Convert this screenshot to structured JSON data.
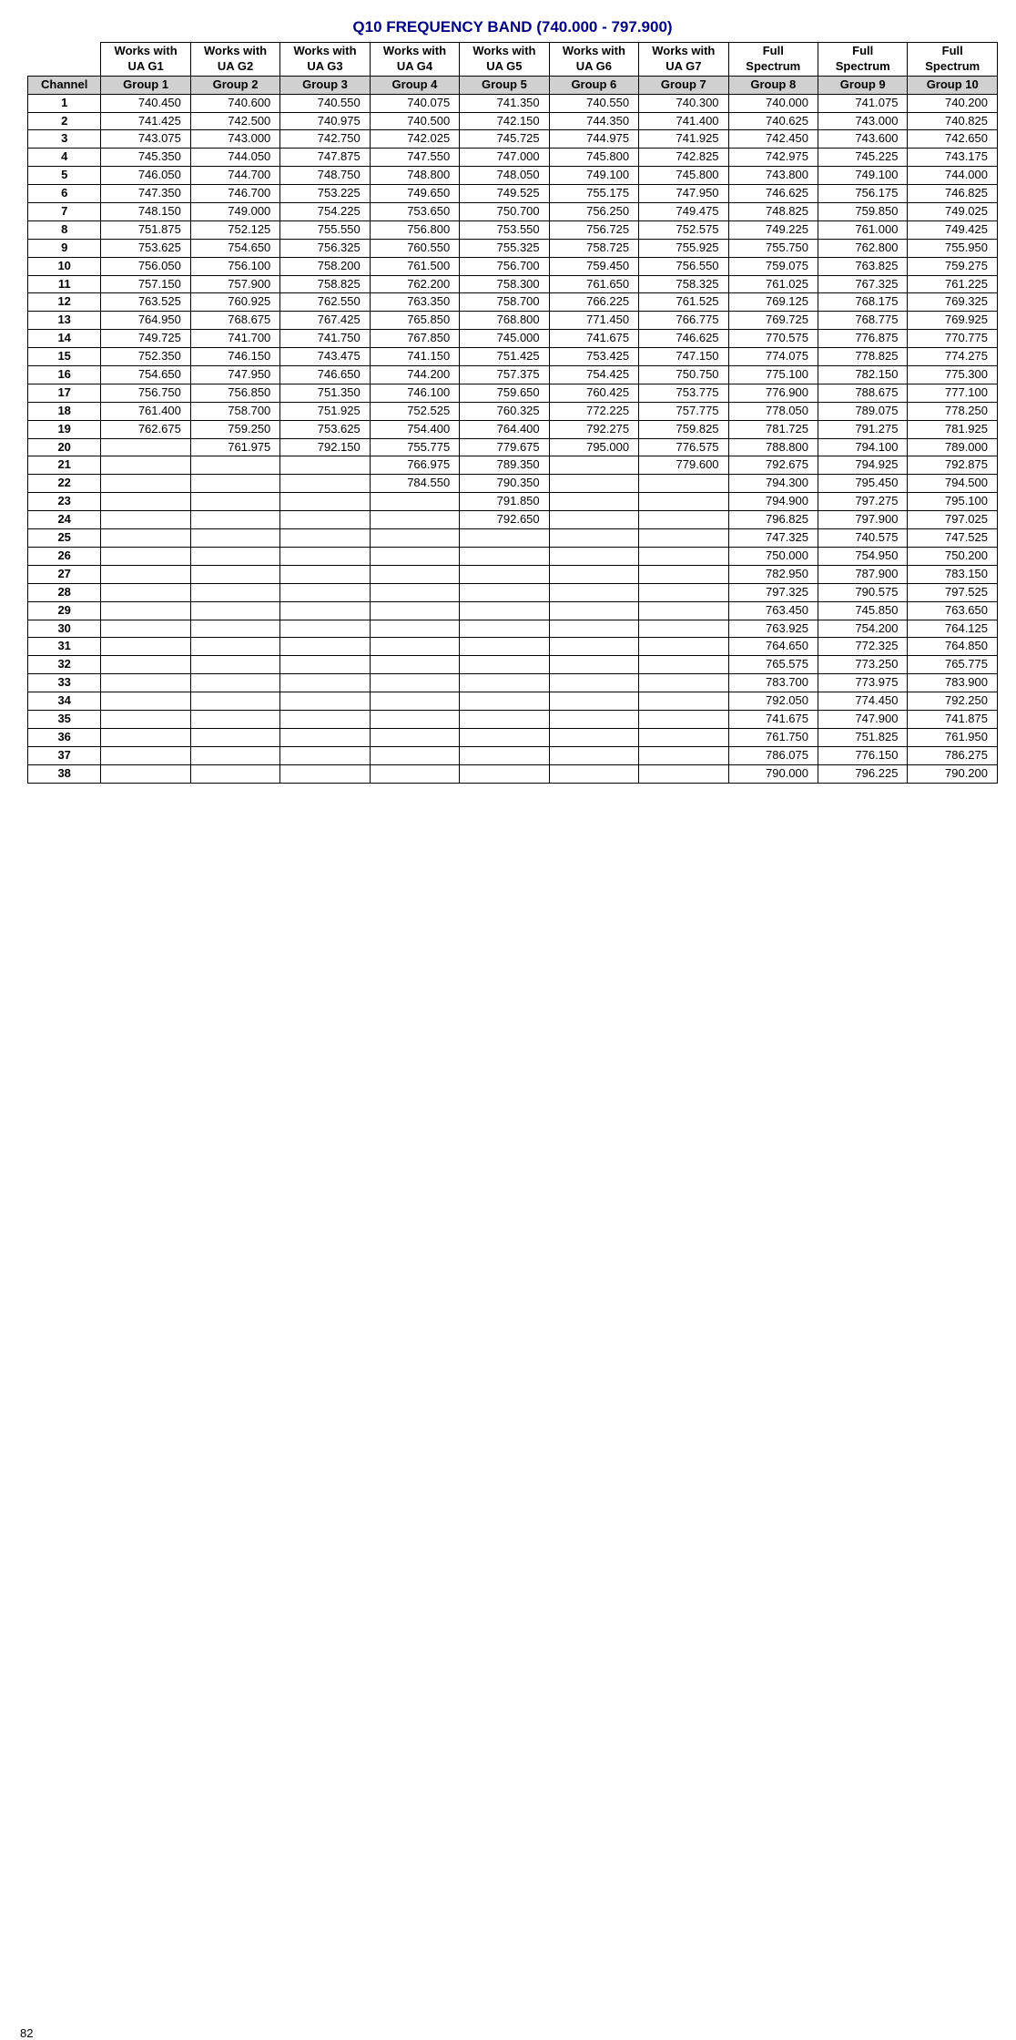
{
  "title": "Q10 FREQUENCY BAND (740.000 - 797.900)",
  "pageNumber": "82",
  "header_top": [
    [
      "Works with",
      "UA G1"
    ],
    [
      "Works with",
      "UA G2"
    ],
    [
      "Works with",
      "UA G3"
    ],
    [
      "Works with",
      "UA G4"
    ],
    [
      "Works with",
      "UA G5"
    ],
    [
      "Works with",
      "UA G6"
    ],
    [
      "Works with",
      "UA G7"
    ],
    [
      "Full",
      "Spectrum"
    ],
    [
      "Full",
      "Spectrum"
    ],
    [
      "Full",
      "Spectrum"
    ]
  ],
  "channel_label": "Channel",
  "groups": [
    "Group 1",
    "Group 2",
    "Group 3",
    "Group 4",
    "Group 5",
    "Group 6",
    "Group 7",
    "Group 8",
    "Group 9",
    "Group 10"
  ],
  "rows": [
    {
      "ch": "1",
      "v": [
        "740.450",
        "740.600",
        "740.550",
        "740.075",
        "741.350",
        "740.550",
        "740.300",
        "740.000",
        "741.075",
        "740.200"
      ]
    },
    {
      "ch": "2",
      "v": [
        "741.425",
        "742.500",
        "740.975",
        "740.500",
        "742.150",
        "744.350",
        "741.400",
        "740.625",
        "743.000",
        "740.825"
      ]
    },
    {
      "ch": "3",
      "v": [
        "743.075",
        "743.000",
        "742.750",
        "742.025",
        "745.725",
        "744.975",
        "741.925",
        "742.450",
        "743.600",
        "742.650"
      ]
    },
    {
      "ch": "4",
      "v": [
        "745.350",
        "744.050",
        "747.875",
        "747.550",
        "747.000",
        "745.800",
        "742.825",
        "742.975",
        "745.225",
        "743.175"
      ]
    },
    {
      "ch": "5",
      "v": [
        "746.050",
        "744.700",
        "748.750",
        "748.800",
        "748.050",
        "749.100",
        "745.800",
        "743.800",
        "749.100",
        "744.000"
      ]
    },
    {
      "ch": "6",
      "v": [
        "747.350",
        "746.700",
        "753.225",
        "749.650",
        "749.525",
        "755.175",
        "747.950",
        "746.625",
        "756.175",
        "746.825"
      ]
    },
    {
      "ch": "7",
      "v": [
        "748.150",
        "749.000",
        "754.225",
        "753.650",
        "750.700",
        "756.250",
        "749.475",
        "748.825",
        "759.850",
        "749.025"
      ]
    },
    {
      "ch": "8",
      "v": [
        "751.875",
        "752.125",
        "755.550",
        "756.800",
        "753.550",
        "756.725",
        "752.575",
        "749.225",
        "761.000",
        "749.425"
      ]
    },
    {
      "ch": "9",
      "v": [
        "753.625",
        "754.650",
        "756.325",
        "760.550",
        "755.325",
        "758.725",
        "755.925",
        "755.750",
        "762.800",
        "755.950"
      ]
    },
    {
      "ch": "10",
      "v": [
        "756.050",
        "756.100",
        "758.200",
        "761.500",
        "756.700",
        "759.450",
        "756.550",
        "759.075",
        "763.825",
        "759.275"
      ]
    },
    {
      "ch": "11",
      "v": [
        "757.150",
        "757.900",
        "758.825",
        "762.200",
        "758.300",
        "761.650",
        "758.325",
        "761.025",
        "767.325",
        "761.225"
      ]
    },
    {
      "ch": "12",
      "v": [
        "763.525",
        "760.925",
        "762.550",
        "763.350",
        "758.700",
        "766.225",
        "761.525",
        "769.125",
        "768.175",
        "769.325"
      ]
    },
    {
      "ch": "13",
      "v": [
        "764.950",
        "768.675",
        "767.425",
        "765.850",
        "768.800",
        "771.450",
        "766.775",
        "769.725",
        "768.775",
        "769.925"
      ]
    },
    {
      "ch": "14",
      "v": [
        "749.725",
        "741.700",
        "741.750",
        "767.850",
        "745.000",
        "741.675",
        "746.625",
        "770.575",
        "776.875",
        "770.775"
      ]
    },
    {
      "ch": "15",
      "v": [
        "752.350",
        "746.150",
        "743.475",
        "741.150",
        "751.425",
        "753.425",
        "747.150",
        "774.075",
        "778.825",
        "774.275"
      ]
    },
    {
      "ch": "16",
      "v": [
        "754.650",
        "747.950",
        "746.650",
        "744.200",
        "757.375",
        "754.425",
        "750.750",
        "775.100",
        "782.150",
        "775.300"
      ]
    },
    {
      "ch": "17",
      "v": [
        "756.750",
        "756.850",
        "751.350",
        "746.100",
        "759.650",
        "760.425",
        "753.775",
        "776.900",
        "788.675",
        "777.100"
      ]
    },
    {
      "ch": "18",
      "v": [
        "761.400",
        "758.700",
        "751.925",
        "752.525",
        "760.325",
        "772.225",
        "757.775",
        "778.050",
        "789.075",
        "778.250"
      ]
    },
    {
      "ch": "19",
      "v": [
        "762.675",
        "759.250",
        "753.625",
        "754.400",
        "764.400",
        "792.275",
        "759.825",
        "781.725",
        "791.275",
        "781.925"
      ]
    },
    {
      "ch": "20",
      "v": [
        "",
        "761.975",
        "792.150",
        "755.775",
        "779.675",
        "795.000",
        "776.575",
        "788.800",
        "794.100",
        "789.000"
      ]
    },
    {
      "ch": "21",
      "v": [
        "",
        "",
        "",
        "766.975",
        "789.350",
        "",
        "779.600",
        "792.675",
        "794.925",
        "792.875"
      ]
    },
    {
      "ch": "22",
      "v": [
        "",
        "",
        "",
        "784.550",
        "790.350",
        "",
        "",
        "794.300",
        "795.450",
        "794.500"
      ]
    },
    {
      "ch": "23",
      "v": [
        "",
        "",
        "",
        "",
        "791.850",
        "",
        "",
        "794.900",
        "797.275",
        "795.100"
      ]
    },
    {
      "ch": "24",
      "v": [
        "",
        "",
        "",
        "",
        "792.650",
        "",
        "",
        "796.825",
        "797.900",
        "797.025"
      ]
    },
    {
      "ch": "25",
      "v": [
        "",
        "",
        "",
        "",
        "",
        "",
        "",
        "747.325",
        "740.575",
        "747.525"
      ]
    },
    {
      "ch": "26",
      "v": [
        "",
        "",
        "",
        "",
        "",
        "",
        "",
        "750.000",
        "754.950",
        "750.200"
      ]
    },
    {
      "ch": "27",
      "v": [
        "",
        "",
        "",
        "",
        "",
        "",
        "",
        "782.950",
        "787.900",
        "783.150"
      ]
    },
    {
      "ch": "28",
      "v": [
        "",
        "",
        "",
        "",
        "",
        "",
        "",
        "797.325",
        "790.575",
        "797.525"
      ]
    },
    {
      "ch": "29",
      "v": [
        "",
        "",
        "",
        "",
        "",
        "",
        "",
        "763.450",
        "745.850",
        "763.650"
      ]
    },
    {
      "ch": "30",
      "v": [
        "",
        "",
        "",
        "",
        "",
        "",
        "",
        "763.925",
        "754.200",
        "764.125"
      ]
    },
    {
      "ch": "31",
      "v": [
        "",
        "",
        "",
        "",
        "",
        "",
        "",
        "764.650",
        "772.325",
        "764.850"
      ]
    },
    {
      "ch": "32",
      "v": [
        "",
        "",
        "",
        "",
        "",
        "",
        "",
        "765.575",
        "773.250",
        "765.775"
      ]
    },
    {
      "ch": "33",
      "v": [
        "",
        "",
        "",
        "",
        "",
        "",
        "",
        "783.700",
        "773.975",
        "783.900"
      ]
    },
    {
      "ch": "34",
      "v": [
        "",
        "",
        "",
        "",
        "",
        "",
        "",
        "792.050",
        "774.450",
        "792.250"
      ]
    },
    {
      "ch": "35",
      "v": [
        "",
        "",
        "",
        "",
        "",
        "",
        "",
        "741.675",
        "747.900",
        "741.875"
      ]
    },
    {
      "ch": "36",
      "v": [
        "",
        "",
        "",
        "",
        "",
        "",
        "",
        "761.750",
        "751.825",
        "761.950"
      ]
    },
    {
      "ch": "37",
      "v": [
        "",
        "",
        "",
        "",
        "",
        "",
        "",
        "786.075",
        "776.150",
        "786.275"
      ]
    },
    {
      "ch": "38",
      "v": [
        "",
        "",
        "",
        "",
        "",
        "",
        "",
        "790.000",
        "796.225",
        "790.200"
      ]
    }
  ]
}
